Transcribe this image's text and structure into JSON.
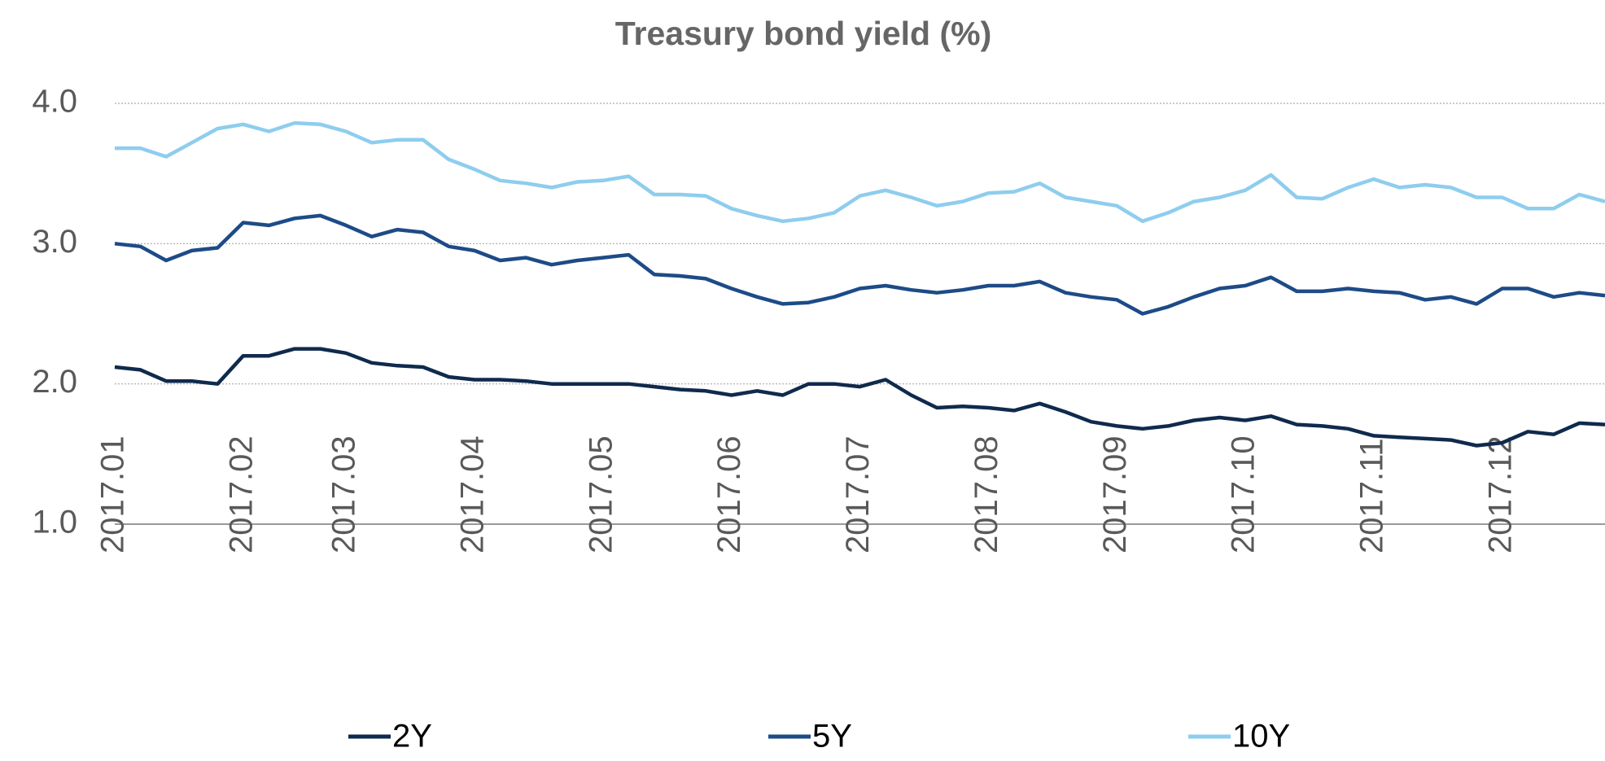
{
  "chart_data": {
    "type": "line",
    "title": "Treasury bond yield (%)",
    "categories": [
      "2017.01",
      null,
      null,
      null,
      null,
      "2017.02",
      null,
      null,
      null,
      "2017.03",
      null,
      null,
      null,
      null,
      "2017.04",
      null,
      null,
      null,
      null,
      "2017.05",
      null,
      null,
      null,
      null,
      "2017.06",
      null,
      null,
      null,
      null,
      "2017.07",
      null,
      null,
      null,
      null,
      "2017.08",
      null,
      null,
      null,
      null,
      "2017.09",
      null,
      null,
      null,
      null,
      "2017.10",
      null,
      null,
      null,
      null,
      "2017.11",
      null,
      null,
      null,
      null,
      "2017.12",
      null,
      null,
      null,
      null
    ],
    "series": [
      {
        "name": "2Y",
        "color": "#0f2a4d",
        "values": [
          2.12,
          2.1,
          2.02,
          2.02,
          2.0,
          2.2,
          2.2,
          2.25,
          2.25,
          2.22,
          2.15,
          2.13,
          2.12,
          2.05,
          2.03,
          2.03,
          2.02,
          2.0,
          2.0,
          2.0,
          2.0,
          1.98,
          1.96,
          1.95,
          1.92,
          1.95,
          1.92,
          2.0,
          2.0,
          1.98,
          2.03,
          1.92,
          1.83,
          1.84,
          1.83,
          1.81,
          1.86,
          1.8,
          1.73,
          1.7,
          1.68,
          1.7,
          1.74,
          1.76,
          1.74,
          1.77,
          1.71,
          1.7,
          1.68,
          1.63,
          1.62,
          1.61,
          1.6,
          1.56,
          1.58,
          1.66,
          1.64,
          1.72,
          1.71
        ]
      },
      {
        "name": "5Y",
        "color": "#1d4b87",
        "values": [
          3.0,
          2.98,
          2.88,
          2.95,
          2.97,
          3.15,
          3.13,
          3.18,
          3.2,
          3.13,
          3.05,
          3.1,
          3.08,
          2.98,
          2.95,
          2.88,
          2.9,
          2.85,
          2.88,
          2.9,
          2.92,
          2.78,
          2.77,
          2.75,
          2.68,
          2.62,
          2.57,
          2.58,
          2.62,
          2.68,
          2.7,
          2.67,
          2.65,
          2.67,
          2.7,
          2.7,
          2.73,
          2.65,
          2.62,
          2.6,
          2.5,
          2.55,
          2.62,
          2.68,
          2.7,
          2.76,
          2.66,
          2.66,
          2.68,
          2.66,
          2.65,
          2.6,
          2.62,
          2.57,
          2.68,
          2.68,
          2.62,
          2.65,
          2.63
        ]
      },
      {
        "name": "10Y",
        "color": "#8ecdee",
        "values": [
          3.68,
          3.68,
          3.62,
          3.72,
          3.82,
          3.85,
          3.8,
          3.86,
          3.85,
          3.8,
          3.72,
          3.74,
          3.74,
          3.6,
          3.53,
          3.45,
          3.43,
          3.4,
          3.44,
          3.45,
          3.48,
          3.35,
          3.35,
          3.34,
          3.25,
          3.2,
          3.16,
          3.18,
          3.22,
          3.34,
          3.38,
          3.33,
          3.27,
          3.3,
          3.36,
          3.37,
          3.43,
          3.33,
          3.3,
          3.27,
          3.16,
          3.22,
          3.3,
          3.33,
          3.38,
          3.49,
          3.33,
          3.32,
          3.4,
          3.46,
          3.4,
          3.42,
          3.4,
          3.33,
          3.33,
          3.25,
          3.25,
          3.35,
          3.3
        ]
      }
    ],
    "ylim": [
      1,
      4
    ],
    "yticks": [
      {
        "value": 1,
        "label": "1.0"
      },
      {
        "value": 2,
        "label": "2.0"
      },
      {
        "value": 3,
        "label": "3.0"
      },
      {
        "value": 4,
        "label": "4.0"
      }
    ],
    "grid": true,
    "legend": "bottom"
  }
}
